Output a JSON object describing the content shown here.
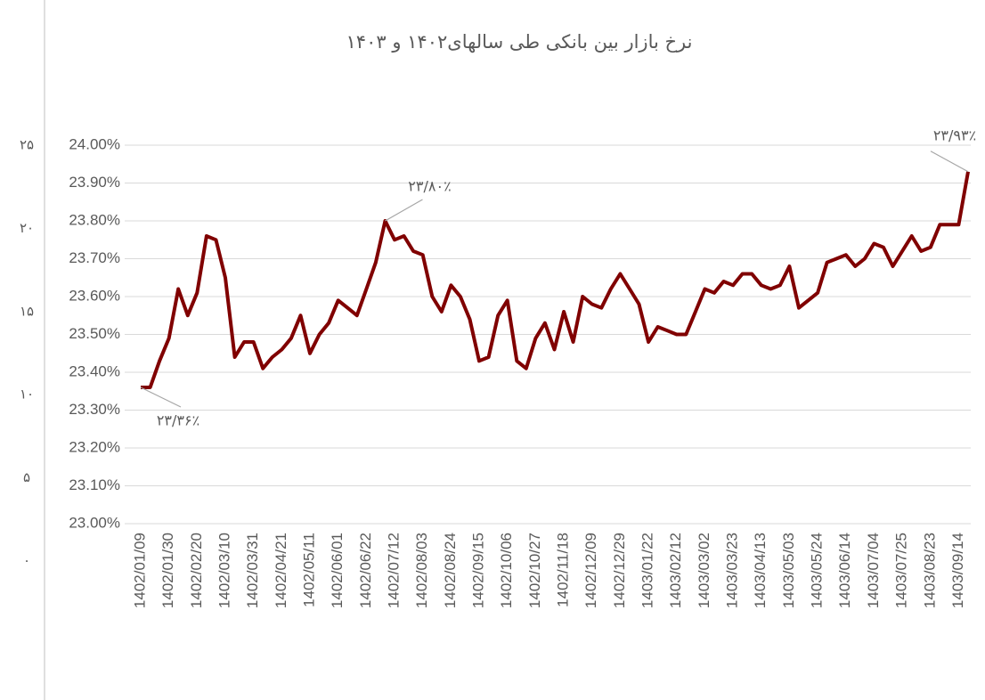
{
  "chart_data": {
    "type": "line",
    "title": "نرخ بازار بین بانکی طی سالهای۱۴۰۲ و ۱۴۰۳",
    "categories": [
      "1402/01/09",
      null,
      null,
      "1402/01/30",
      null,
      null,
      "1402/02/20",
      null,
      null,
      "1402/03/10",
      null,
      null,
      "1402/03/31",
      null,
      null,
      "1402/04/21",
      null,
      null,
      "1402/05/11",
      null,
      null,
      "1402/06/01",
      null,
      null,
      "1402/06/22",
      null,
      null,
      "1402/07/12",
      null,
      null,
      "1402/08/03",
      null,
      null,
      "1402/08/24",
      null,
      null,
      "1402/09/15",
      null,
      null,
      "1402/10/06",
      null,
      null,
      "1402/10/27",
      null,
      null,
      "1402/11/18",
      null,
      null,
      "1402/12/09",
      null,
      null,
      "1402/12/29",
      null,
      null,
      "1403/01/22",
      null,
      null,
      "1403/02/12",
      null,
      null,
      "1403/03/02",
      null,
      null,
      "1403/03/23",
      null,
      null,
      "1403/04/13",
      null,
      null,
      "1403/05/03",
      null,
      null,
      "1403/05/24",
      null,
      null,
      "1403/06/14",
      null,
      null,
      "1403/07/04",
      null,
      null,
      "1403/07/25",
      null,
      null,
      "1403/08/23",
      null,
      null,
      "1403/09/14",
      null
    ],
    "values": [
      23.36,
      23.36,
      23.43,
      23.49,
      23.62,
      23.55,
      23.61,
      23.76,
      23.75,
      23.65,
      23.44,
      23.48,
      23.48,
      23.41,
      23.44,
      23.46,
      23.49,
      23.55,
      23.45,
      23.5,
      23.53,
      23.59,
      23.57,
      23.55,
      23.62,
      23.69,
      23.8,
      23.75,
      23.76,
      23.72,
      23.71,
      23.6,
      23.56,
      23.63,
      23.6,
      23.54,
      23.43,
      23.44,
      23.55,
      23.59,
      23.43,
      23.41,
      23.49,
      23.53,
      23.46,
      23.56,
      23.48,
      23.6,
      23.58,
      23.57,
      23.62,
      23.66,
      23.62,
      23.58,
      23.48,
      23.52,
      23.51,
      23.5,
      23.5,
      23.56,
      23.62,
      23.61,
      23.64,
      23.63,
      23.66,
      23.66,
      23.63,
      23.62,
      23.63,
      23.68,
      23.57,
      23.59,
      23.61,
      23.69,
      23.7,
      23.71,
      23.68,
      23.7,
      23.74,
      23.73,
      23.68,
      23.72,
      23.76,
      23.72,
      23.73,
      23.79,
      23.79,
      23.79,
      23.93
    ],
    "value_labels": [
      "۲۳/۳۶٪",
      null,
      null,
      null,
      null,
      null,
      null,
      null,
      null,
      null,
      null,
      null,
      null,
      null,
      null,
      null,
      null,
      null,
      null,
      null,
      null,
      null,
      null,
      null,
      null,
      null,
      "۲۳/۸۰٪",
      null,
      null,
      null,
      null,
      null,
      null,
      null,
      null,
      null,
      null,
      null,
      null,
      null,
      null,
      null,
      null,
      null,
      null,
      null,
      null,
      null,
      null,
      null,
      null,
      null,
      null,
      null,
      null,
      null,
      null,
      null,
      null,
      null,
      null,
      null,
      null,
      null,
      null,
      null,
      null,
      null,
      null,
      null,
      null,
      null,
      null,
      null,
      null,
      null,
      null,
      null,
      null,
      null,
      null,
      null,
      null,
      null,
      null,
      null,
      null,
      null,
      "۲۳/۹۳٪"
    ],
    "color": "#800000",
    "ylim": [
      23,
      24
    ],
    "yticks": [
      {
        "value": 23,
        "label": "23.00%"
      },
      {
        "value": 23.1,
        "label": "23.10%"
      },
      {
        "value": 23.2,
        "label": "23.20%"
      },
      {
        "value": 23.3,
        "label": "23.30%"
      },
      {
        "value": 23.4,
        "label": "23.40%"
      },
      {
        "value": 23.5,
        "label": "23.50%"
      },
      {
        "value": 23.6,
        "label": "23.60%"
      },
      {
        "value": 23.7,
        "label": "23.70%"
      },
      {
        "value": 23.8,
        "label": "23.80%"
      },
      {
        "value": 23.9,
        "label": "23.90%"
      },
      {
        "value": 24,
        "label": "24.00%"
      }
    ],
    "y2lim": [
      0,
      25
    ],
    "y2ticks": [
      {
        "value": 0,
        "label": "۰"
      },
      {
        "value": 5,
        "label": "۵"
      },
      {
        "value": 10,
        "label": "۱۰"
      },
      {
        "value": 15,
        "label": "۱۵"
      },
      {
        "value": 20,
        "label": "۲۰"
      },
      {
        "value": 25,
        "label": "۲۵"
      }
    ],
    "grid": true
  }
}
